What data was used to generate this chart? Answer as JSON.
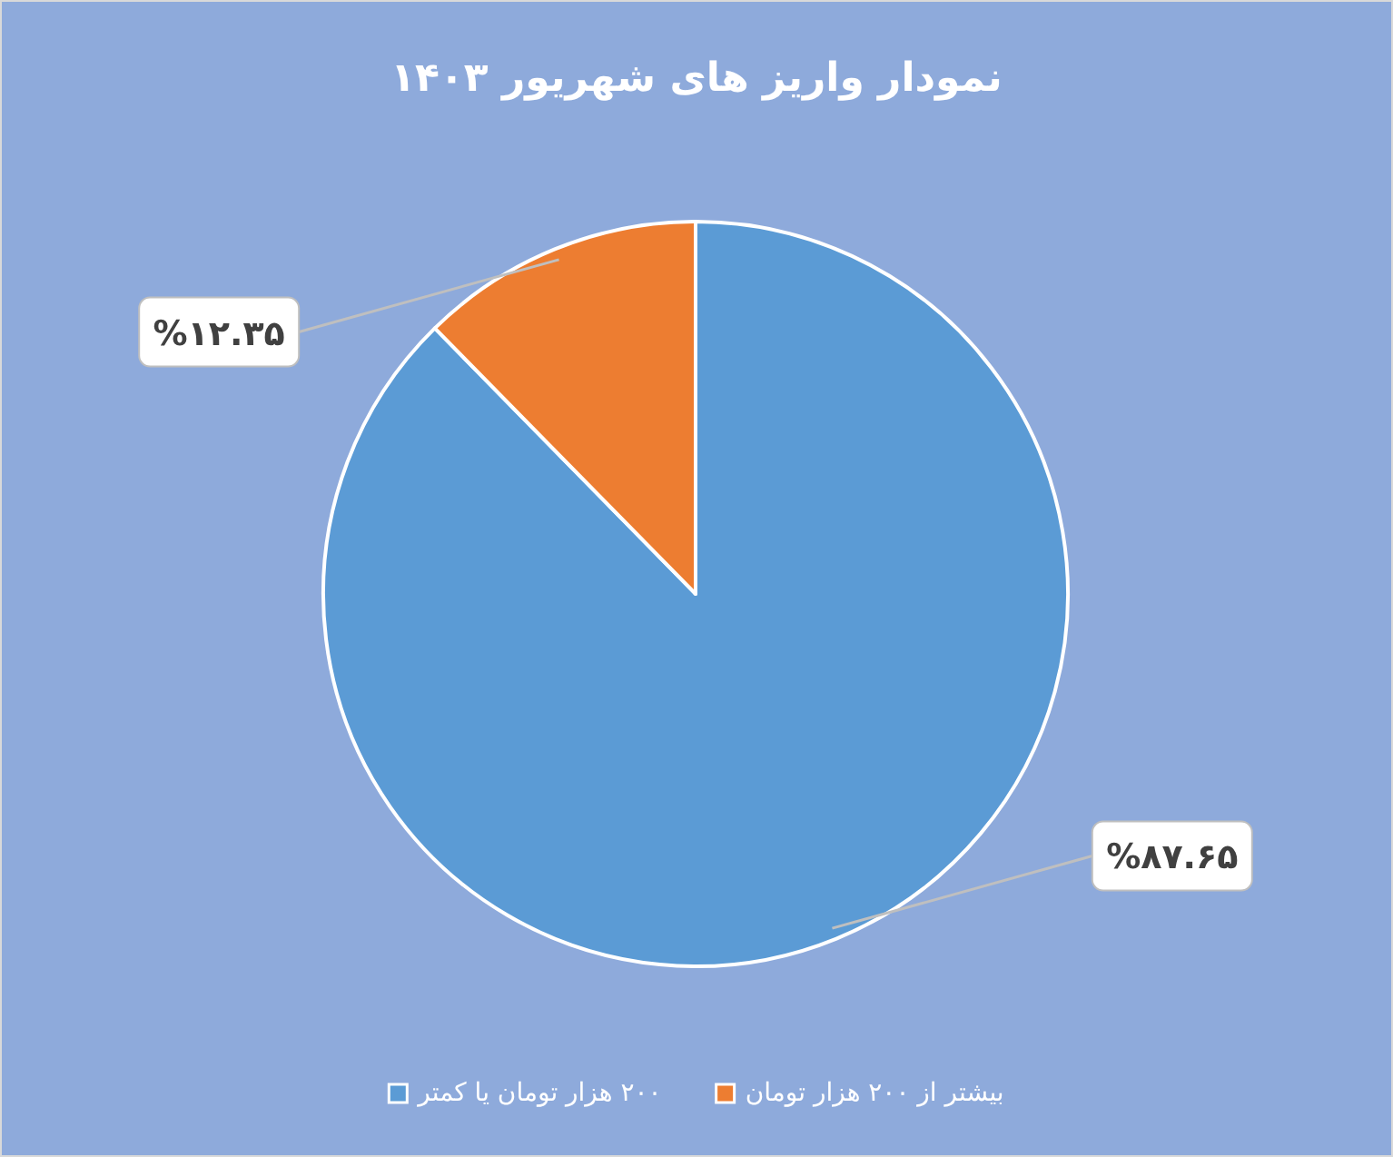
{
  "chart_data": {
    "type": "pie",
    "title": "نمودار واریز های شهریور ۱۴۰۳",
    "categories": [
      "۲۰۰ هزار تومان یا کمتر",
      "بیشتر از ۲۰۰ هزار تومان"
    ],
    "values": [
      87.65,
      12.35
    ],
    "value_labels": [
      "%۸۷.۶۵",
      "%۱۲.۳۵"
    ],
    "colors": [
      "#5b9bd5",
      "#ed7d31"
    ],
    "legend": "bottom"
  }
}
